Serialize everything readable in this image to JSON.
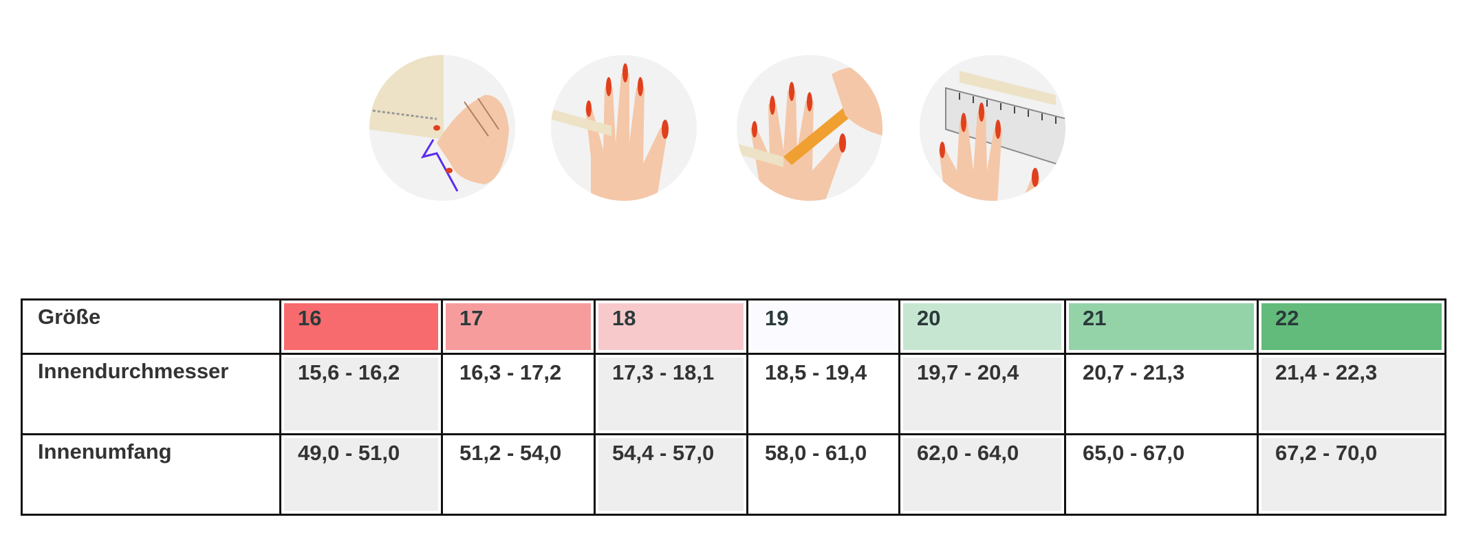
{
  "illustrations": [
    {
      "icon": "wrap-strip-around-finger-icon"
    },
    {
      "icon": "strip-on-finger-icon"
    },
    {
      "icon": "mark-strip-with-pencil-icon"
    },
    {
      "icon": "measure-strip-with-ruler-icon"
    }
  ],
  "table": {
    "header_label": "Größe",
    "sizes": [
      {
        "label": "16",
        "color": "#f76a6d"
      },
      {
        "label": "17",
        "color": "#f79c9d"
      },
      {
        "label": "18",
        "color": "#f8c9cb"
      },
      {
        "label": "19",
        "color": "#fbfbff"
      },
      {
        "label": "20",
        "color": "#c6e6d1"
      },
      {
        "label": "21",
        "color": "#94d3a8"
      },
      {
        "label": "22",
        "color": "#62bb7b"
      }
    ],
    "rows": [
      {
        "label": "Innendurchmesser",
        "values": [
          "15,6 - 16,2",
          "16,3 - 17,2",
          "17,3 - 18,1",
          "18,5 - 19,4",
          "19,7 - 20,4",
          "20,7 - 21,3",
          "21,4 - 22,3"
        ]
      },
      {
        "label": "Innenumfang",
        "values": [
          "49,0 - 51,0",
          "51,2 - 54,0",
          "54,4 - 57,0",
          "58,0 - 61,0",
          "62,0 - 64,0",
          "65,0 - 67,0",
          "67,2 - 70,0"
        ]
      }
    ]
  }
}
